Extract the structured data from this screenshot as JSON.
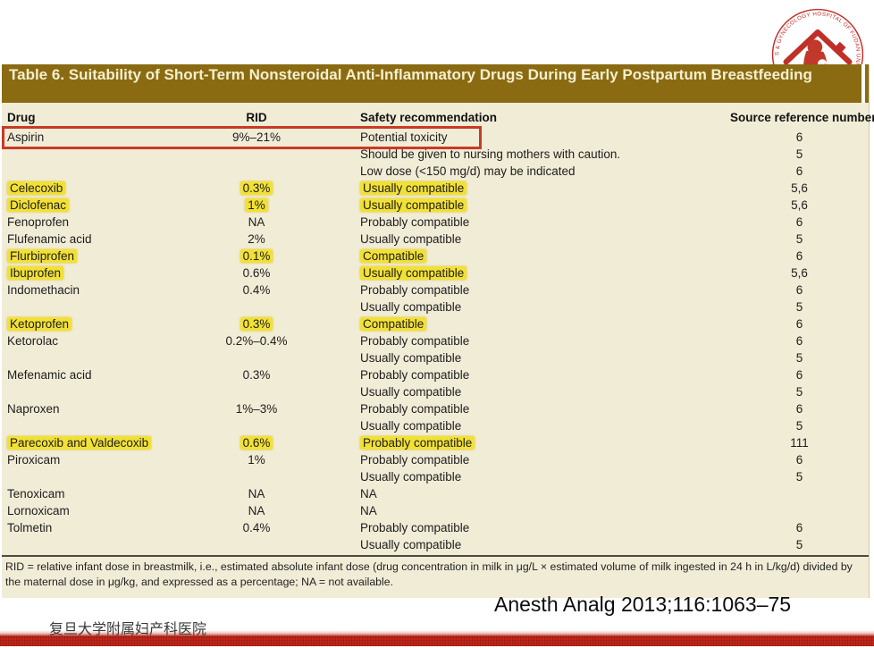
{
  "slide": {
    "affiliation": "复旦大学附属妇产科医院",
    "citation": "Anesth Analg 2013;116:1063–75"
  },
  "logo": {
    "ring_text": "OBSTETRICS & GYNECOLOGY HOSPITAL OF FUDAN UNIVERSITY"
  },
  "table": {
    "title": "Table 6.  Suitability of Short-Term Nonsteroidal Anti-Inflammatory Drugs During Early Postpartum Breastfeeding",
    "columns": [
      "Drug",
      "RID",
      "Safety recommendation",
      "Source reference number"
    ],
    "rows": [
      {
        "drug": "Aspirin",
        "rid": "9%–21%",
        "safety": "Potential toxicity",
        "source": "6",
        "hl": [],
        "red_box": true
      },
      {
        "drug": "",
        "rid": "",
        "safety": "Should be given to nursing mothers with caution.",
        "source": "5",
        "hl": []
      },
      {
        "drug": "",
        "rid": "",
        "safety": "Low dose (<150 mg/d) may be indicated",
        "source": "6",
        "hl": []
      },
      {
        "drug": "Celecoxib",
        "rid": "0.3%",
        "safety": "Usually compatible",
        "source": "5,6",
        "hl": [
          "drug",
          "rid",
          "safety"
        ]
      },
      {
        "drug": "Diclofenac",
        "rid": "1%",
        "safety": "Usually compatible",
        "source": "5,6",
        "hl": [
          "drug",
          "rid",
          "safety"
        ]
      },
      {
        "drug": "Fenoprofen",
        "rid": "NA",
        "safety": "Probably compatible",
        "source": "6",
        "hl": []
      },
      {
        "drug": "Flufenamic acid",
        "rid": "2%",
        "safety": "Usually compatible",
        "source": "5",
        "hl": []
      },
      {
        "drug": "Flurbiprofen",
        "rid": "0.1%",
        "safety": "Compatible",
        "source": "6",
        "hl": [
          "drug",
          "rid",
          "safety"
        ]
      },
      {
        "drug": "Ibuprofen",
        "rid": "0.6%",
        "safety": "Usually compatible",
        "source": "5,6",
        "hl": [
          "drug",
          "safety"
        ]
      },
      {
        "drug": "Indomethacin",
        "rid": "0.4%",
        "safety": "Probably compatible",
        "source": "6",
        "hl": []
      },
      {
        "drug": "",
        "rid": "",
        "safety": "Usually compatible",
        "source": "5",
        "hl": []
      },
      {
        "drug": "Ketoprofen",
        "rid": "0.3%",
        "safety": "Compatible",
        "source": "6",
        "hl": [
          "drug",
          "rid",
          "safety"
        ]
      },
      {
        "drug": "Ketorolac",
        "rid": "0.2%–0.4%",
        "safety": "Probably compatible",
        "source": "6",
        "hl": []
      },
      {
        "drug": "",
        "rid": "",
        "safety": "Usually compatible",
        "source": "5",
        "hl": []
      },
      {
        "drug": "Mefenamic acid",
        "rid": "0.3%",
        "safety": "Probably compatible",
        "source": "6",
        "hl": []
      },
      {
        "drug": "",
        "rid": "",
        "safety": "Usually compatible",
        "source": "5",
        "hl": []
      },
      {
        "drug": "Naproxen",
        "rid": "1%–3%",
        "safety": "Probably compatible",
        "source": "6",
        "hl": []
      },
      {
        "drug": "",
        "rid": "",
        "safety": "Usually compatible",
        "source": "5",
        "hl": []
      },
      {
        "drug": "Parecoxib and Valdecoxib",
        "rid": "0.6%",
        "safety": "Probably compatible",
        "source": "111",
        "hl": [
          "drug",
          "rid",
          "safety"
        ]
      },
      {
        "drug": "Piroxicam",
        "rid": "1%",
        "safety": "Probably compatible",
        "source": "6",
        "hl": []
      },
      {
        "drug": "",
        "rid": "",
        "safety": "Usually compatible",
        "source": "5",
        "hl": []
      },
      {
        "drug": "Tenoxicam",
        "rid": "NA",
        "safety": "NA",
        "source": "",
        "hl": []
      },
      {
        "drug": "Lornoxicam",
        "rid": "NA",
        "safety": "NA",
        "source": "",
        "hl": []
      },
      {
        "drug": "Tolmetin",
        "rid": "0.4%",
        "safety": "Probably compatible",
        "source": "6",
        "hl": []
      },
      {
        "drug": "",
        "rid": "",
        "safety": "Usually compatible",
        "source": "5",
        "hl": []
      }
    ],
    "footnote": "RID = relative infant dose in breastmilk, i.e., estimated absolute infant dose (drug concentration in milk in μg/L × estimated volume of milk ingested in 24 h in L/kg/d) divided by the maternal dose in μg/kg, and expressed as a percentage; NA = not available.",
    "colors": {
      "title_bar": "#8a6b12",
      "body_bg": "#f1ecd6",
      "highlight": "#f2e135",
      "red_box": "#c93a25",
      "bottom_bar": "#c1261b"
    }
  }
}
